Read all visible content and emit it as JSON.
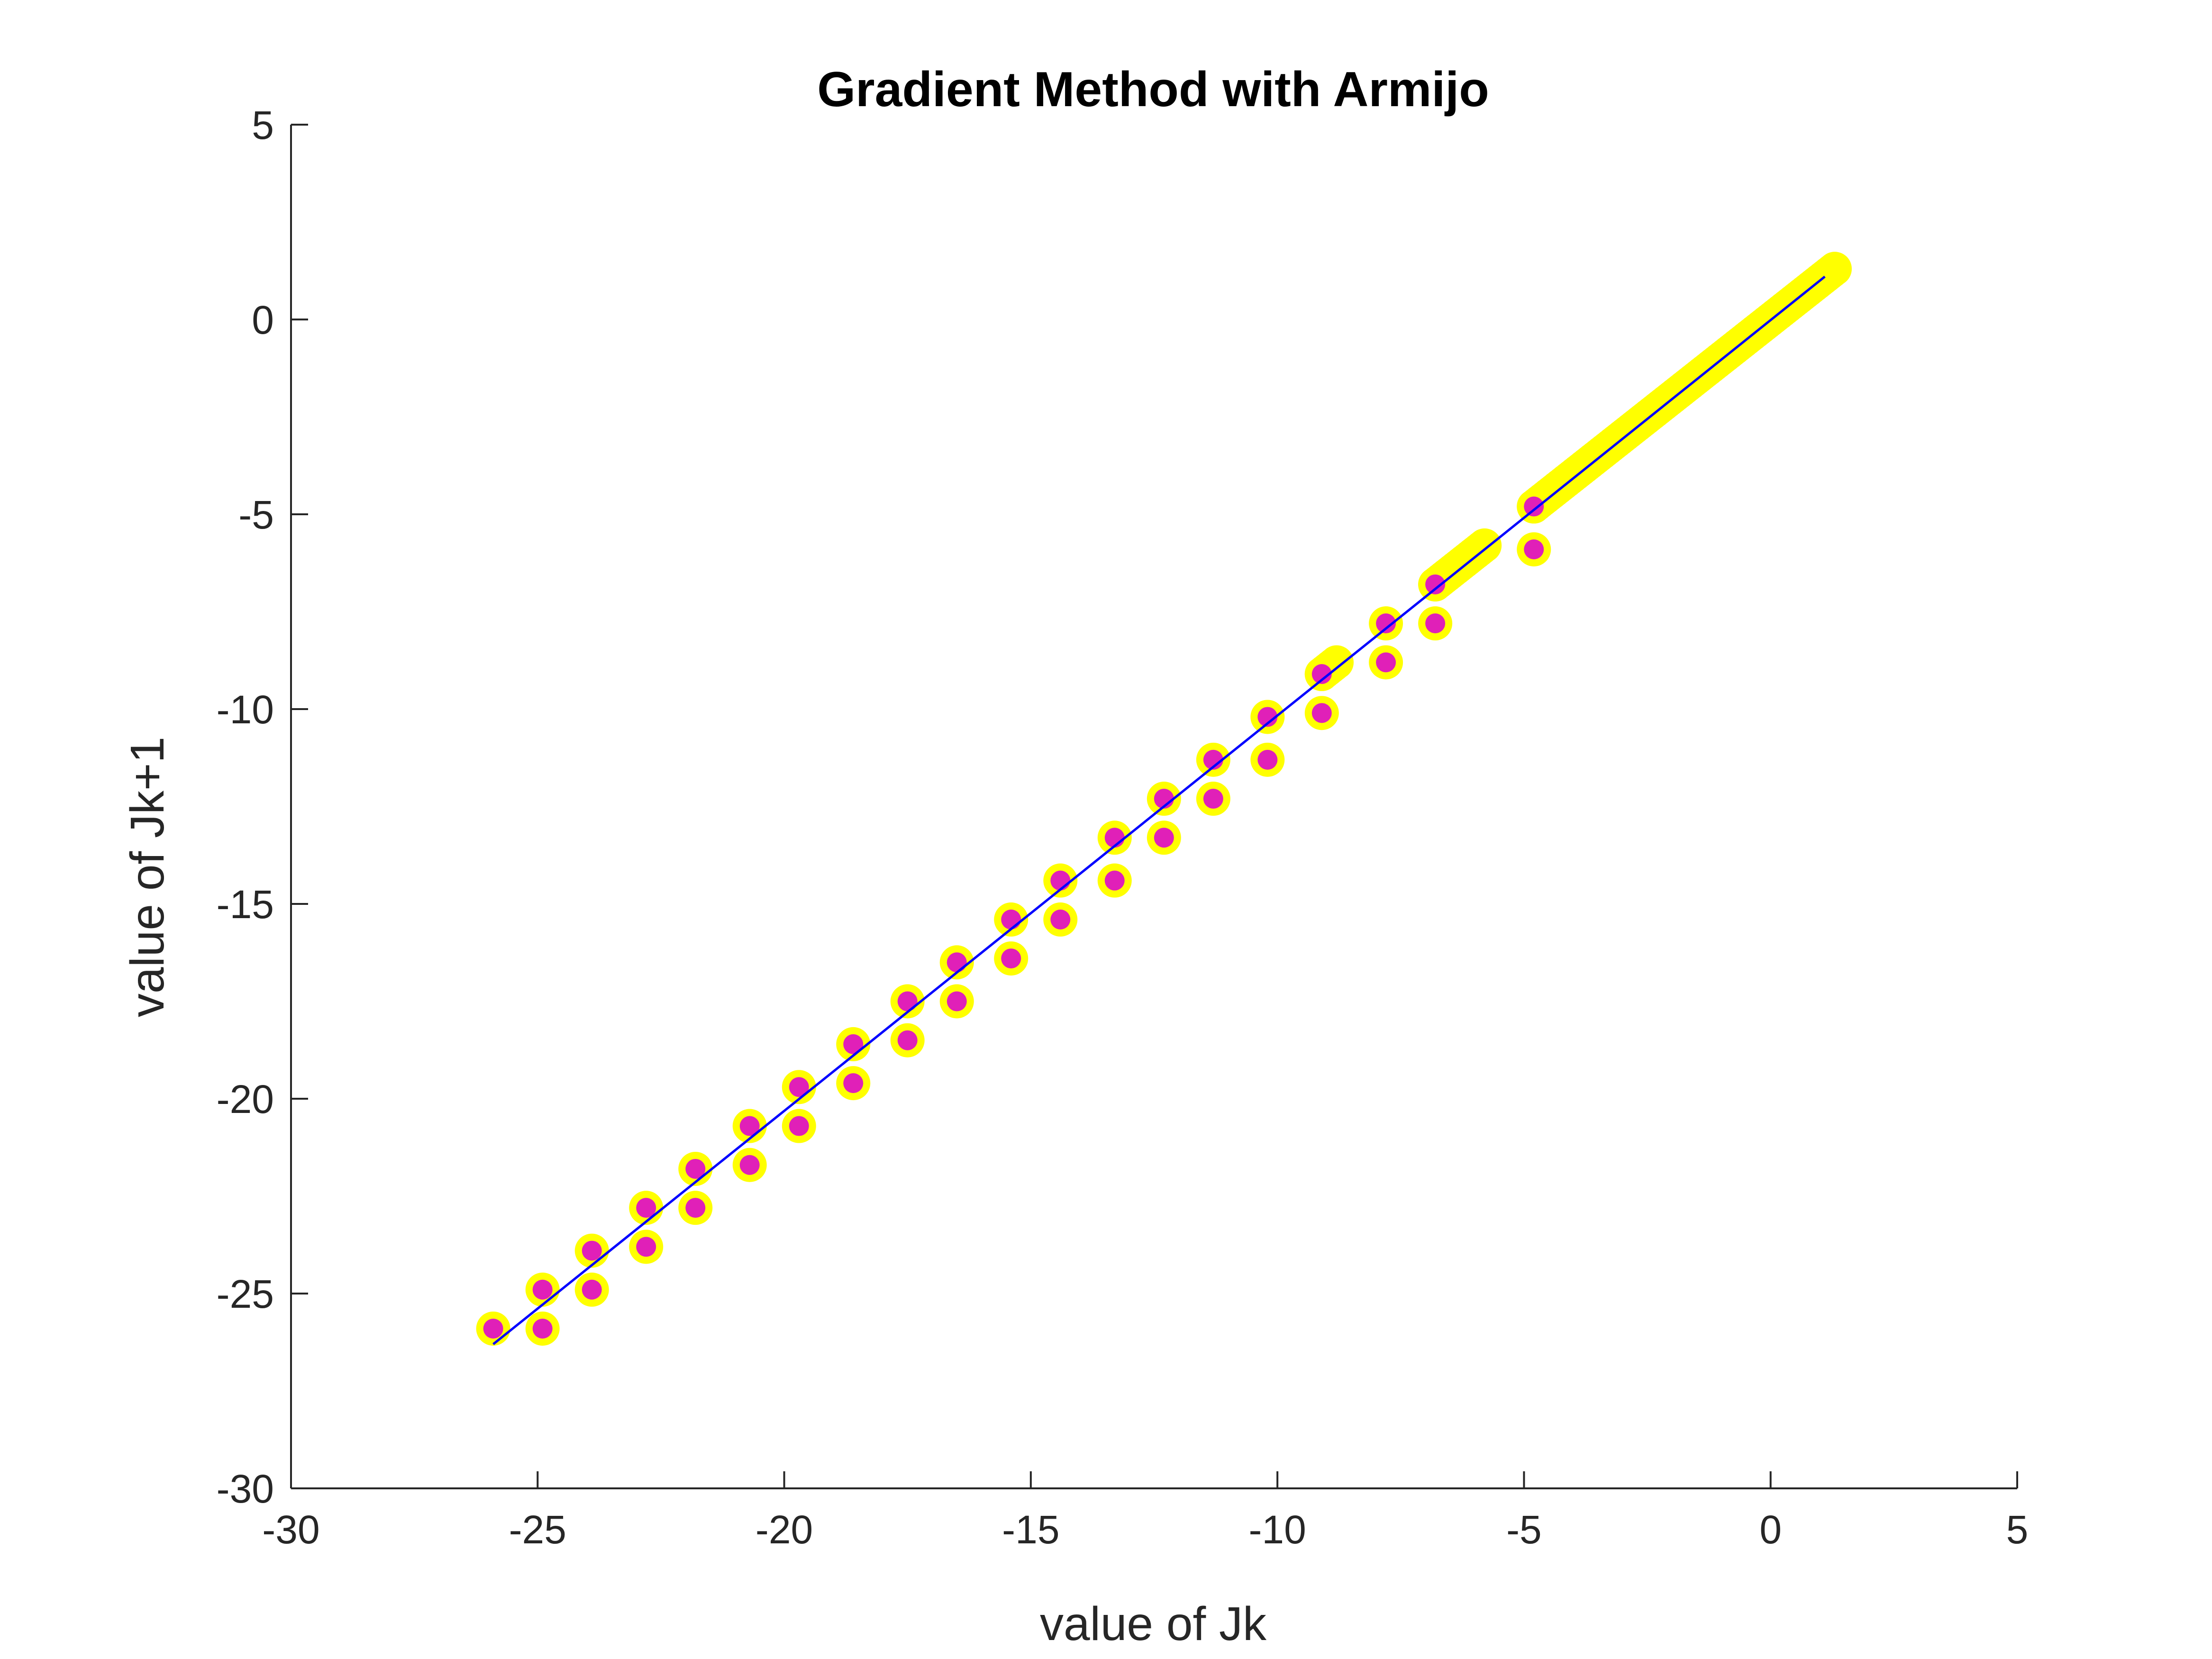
{
  "chart_data": {
    "type": "scatter",
    "title": "Gradient Method with Armijo",
    "xlabel": "value of Jk",
    "ylabel": "value of Jk+1",
    "xlim": [
      -30,
      5
    ],
    "ylim": [
      -30,
      5
    ],
    "xticks": [
      "-30",
      "-25",
      "-20",
      "-15",
      "-10",
      "-5",
      "0",
      "5"
    ],
    "yticks": [
      "5",
      "0",
      "-5",
      "-10",
      "-15",
      "-20",
      "-25",
      "-30"
    ],
    "xtick_values": [
      -30,
      -25,
      -20,
      -15,
      -10,
      -5,
      0,
      5
    ],
    "ytick_values": [
      5,
      0,
      -5,
      -10,
      -15,
      -20,
      -25,
      -30
    ],
    "grid": false,
    "legend": "none",
    "colors": {
      "marker_edge": "#ffff00",
      "marker_face": "#e020b8",
      "line": "#0000ff",
      "axis": "#262626"
    },
    "series": [
      {
        "type": "scatter",
        "points": [
          [
            -25.9,
            -25.9
          ],
          [
            -24.9,
            -24.9
          ],
          [
            -24.9,
            -25.9
          ],
          [
            -23.9,
            -23.9
          ],
          [
            -23.9,
            -24.9
          ],
          [
            -22.8,
            -22.8
          ],
          [
            -22.8,
            -23.8
          ],
          [
            -21.8,
            -21.8
          ],
          [
            -21.8,
            -22.8
          ],
          [
            -20.7,
            -20.7
          ],
          [
            -20.7,
            -21.7
          ],
          [
            -19.7,
            -19.7
          ],
          [
            -19.7,
            -20.7
          ],
          [
            -18.6,
            -18.6
          ],
          [
            -18.6,
            -19.6
          ],
          [
            -17.5,
            -17.5
          ],
          [
            -17.5,
            -18.5
          ],
          [
            -16.5,
            -16.5
          ],
          [
            -16.5,
            -17.5
          ],
          [
            -15.4,
            -15.4
          ],
          [
            -15.4,
            -16.4
          ],
          [
            -14.4,
            -14.4
          ],
          [
            -14.4,
            -15.4
          ],
          [
            -13.3,
            -13.3
          ],
          [
            -13.3,
            -14.4
          ],
          [
            -12.3,
            -12.3
          ],
          [
            -12.3,
            -13.3
          ],
          [
            -11.3,
            -11.3
          ],
          [
            -11.3,
            -12.3
          ],
          [
            -10.2,
            -10.2
          ],
          [
            -10.2,
            -11.3
          ],
          [
            -9.1,
            -9.1
          ],
          [
            -9.1,
            -10.1
          ],
          [
            -7.8,
            -7.8
          ],
          [
            -7.8,
            -8.8
          ],
          [
            -6.8,
            -6.8
          ],
          [
            -6.8,
            -7.8
          ],
          [
            -4.8,
            -4.8
          ],
          [
            -4.8,
            -5.9
          ]
        ],
        "dense_segments": [
          [
            -9.1,
            -8.8
          ],
          [
            -6.8,
            -5.8
          ],
          [
            -4.8,
            1.3
          ]
        ]
      },
      {
        "type": "line",
        "x": [
          -25.9,
          1.1
        ],
        "y": [
          -26.3,
          1.1
        ]
      }
    ]
  }
}
